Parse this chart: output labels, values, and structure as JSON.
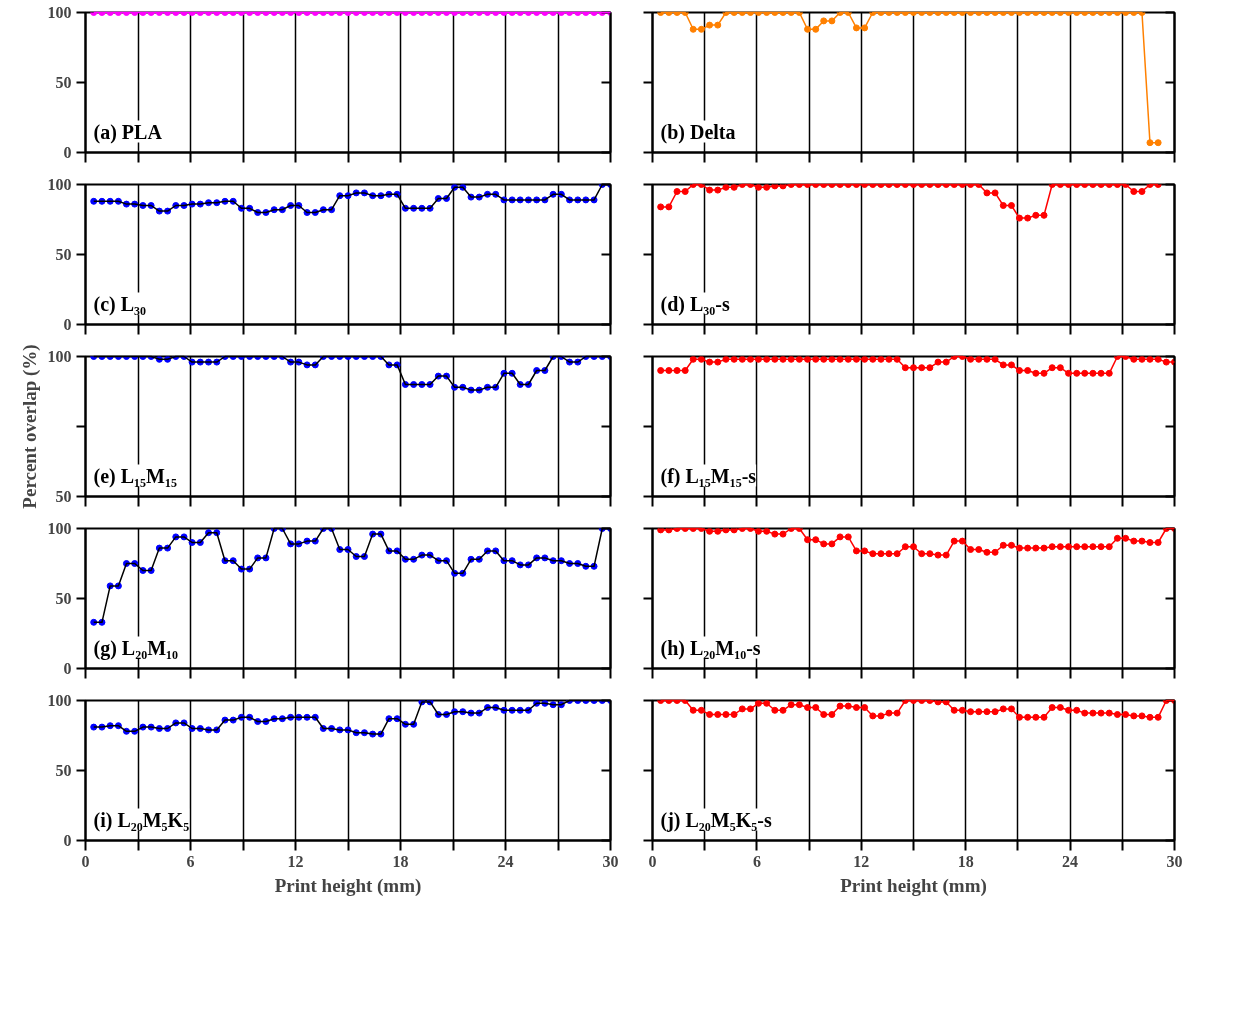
{
  "chart_data": [
    {
      "type": "line",
      "title": "(a) PLA",
      "xlim": [
        0,
        30
      ],
      "ylim": [
        0,
        100
      ],
      "xticks": [
        0,
        {
          "value": 3,
          "label": null
        },
        6,
        {
          "value": 9,
          "label": null
        },
        12,
        {
          "value": 15,
          "label": null
        },
        18,
        {
          "value": 21,
          "label": null
        },
        24,
        {
          "value": 27,
          "label": null
        },
        30
      ],
      "yticks": [
        0,
        50,
        100
      ],
      "grid": "x",
      "tick_labels": "y",
      "marker": "circle",
      "line_style": "solid",
      "x": [
        0.47,
        0.94,
        1.41,
        1.88,
        2.34,
        2.81,
        3.28,
        3.75,
        4.22,
        4.69,
        5.16,
        5.63,
        6.09,
        6.56,
        7.03,
        7.5,
        7.97,
        8.44,
        8.91,
        9.38,
        9.84,
        10.31,
        10.78,
        11.25,
        11.72,
        12.19,
        12.66,
        13.13,
        13.59,
        14.06,
        14.53,
        15,
        15.47,
        15.94,
        16.41,
        16.88,
        17.34,
        17.81,
        18.28,
        18.75,
        19.22,
        19.69,
        20.16,
        20.63,
        21.09,
        21.56,
        22.03,
        22.5,
        22.97,
        23.44,
        23.91,
        24.38,
        24.84,
        25.31,
        25.78,
        26.25,
        26.72,
        27.19,
        27.66,
        28.13,
        28.59,
        29.06,
        29.53,
        30
      ],
      "series": [
        {
          "color": "#ff00ff",
          "values": [
            100,
            100,
            100,
            100,
            100,
            100,
            100,
            100,
            100,
            100,
            100,
            100,
            100,
            100,
            100,
            100,
            100,
            100,
            100,
            100,
            100,
            100,
            100,
            100,
            100,
            100,
            100,
            100,
            100,
            100,
            100,
            100,
            100,
            100,
            100,
            100,
            100,
            100,
            100,
            100,
            100,
            100,
            100,
            100,
            100,
            100,
            100,
            100,
            100,
            100,
            100,
            100,
            100,
            100,
            100,
            100,
            100,
            100,
            100,
            100,
            100,
            100,
            100,
            100
          ]
        }
      ]
    },
    {
      "type": "line",
      "title": "(b) Delta",
      "xlim": [
        0,
        30
      ],
      "ylim": [
        0,
        100
      ],
      "xticks": [
        0,
        {
          "value": 3,
          "label": null
        },
        6,
        {
          "value": 9,
          "label": null
        },
        12,
        {
          "value": 15,
          "label": null
        },
        18,
        {
          "value": 21,
          "label": null
        },
        24,
        {
          "value": 27,
          "label": null
        },
        30
      ],
      "yticks": [
        {
          "value": 0,
          "label": null
        },
        {
          "value": 50,
          "label": null
        },
        {
          "value": 100,
          "label": null
        }
      ],
      "grid": "x",
      "tick_labels": false,
      "marker": "circle",
      "line_style": "solid",
      "x": [
        0.47,
        0.94,
        1.41,
        1.88,
        2.34,
        2.81,
        3.28,
        3.75,
        4.22,
        4.69,
        5.16,
        5.63,
        6.09,
        6.56,
        7.03,
        7.5,
        7.97,
        8.44,
        8.91,
        9.38,
        9.84,
        10.31,
        10.78,
        11.25,
        11.72,
        12.19,
        12.66,
        13.13,
        13.59,
        14.06,
        14.53,
        15,
        15.47,
        15.94,
        16.41,
        16.88,
        17.34,
        17.81,
        18.28,
        18.75,
        19.22,
        19.69,
        20.16,
        20.63,
        21.09,
        21.56,
        22.03,
        22.5,
        22.97,
        23.44,
        23.91,
        24.38,
        24.84,
        25.31,
        25.78,
        26.25,
        26.72,
        27.19,
        27.66,
        28.13,
        28.59,
        29.06
      ],
      "series": [
        {
          "color": "#ff8000",
          "values": [
            100,
            100,
            100,
            100,
            88,
            88,
            91,
            91,
            100,
            100,
            100,
            100,
            100,
            100,
            100,
            100,
            100,
            100,
            88,
            88,
            94,
            94,
            100,
            100,
            89,
            89,
            100,
            100,
            100,
            100,
            100,
            100,
            100,
            100,
            100,
            100,
            100,
            100,
            100,
            100,
            100,
            100,
            100,
            100,
            100,
            100,
            100,
            100,
            100,
            100,
            100,
            100,
            100,
            100,
            100,
            100,
            100,
            100,
            100,
            100,
            7,
            7
          ]
        }
      ]
    },
    {
      "type": "line",
      "title": "(c) L₃₀",
      "xlim": [
        0,
        30
      ],
      "ylim": [
        0,
        100
      ],
      "xticks": [
        0,
        {
          "value": 3,
          "label": null
        },
        6,
        {
          "value": 9,
          "label": null
        },
        12,
        {
          "value": 15,
          "label": null
        },
        18,
        {
          "value": 21,
          "label": null
        },
        24,
        {
          "value": 27,
          "label": null
        },
        30
      ],
      "yticks": [
        0,
        50,
        100
      ],
      "grid": "x",
      "tick_labels": "y",
      "marker": "circle",
      "line_style": "solid",
      "x": [
        0.47,
        0.94,
        1.41,
        1.88,
        2.34,
        2.81,
        3.28,
        3.75,
        4.22,
        4.69,
        5.16,
        5.63,
        6.09,
        6.56,
        7.03,
        7.5,
        7.97,
        8.44,
        8.91,
        9.38,
        9.84,
        10.31,
        10.78,
        11.25,
        11.72,
        12.19,
        12.66,
        13.13,
        13.59,
        14.06,
        14.53,
        15,
        15.47,
        15.94,
        16.41,
        16.88,
        17.34,
        17.81,
        18.28,
        18.75,
        19.22,
        19.69,
        20.16,
        20.63,
        21.09,
        21.56,
        22.03,
        22.5,
        22.97,
        23.44,
        23.91,
        24.38,
        24.84,
        25.31,
        25.78,
        26.25,
        26.72,
        27.19,
        27.66,
        28.13,
        28.59,
        29.06,
        29.53,
        30
      ],
      "series": [
        {
          "type": "line",
          "marker": "none",
          "color": "#000000",
          "values": [
            88,
            88,
            88,
            88,
            86,
            86,
            85,
            85,
            81,
            81,
            85,
            85,
            86,
            86,
            87,
            87,
            88,
            88,
            83,
            83,
            80,
            80,
            82,
            82,
            85,
            85,
            80,
            80,
            82,
            82,
            92,
            92,
            94,
            94,
            92,
            92,
            93,
            93,
            83,
            83,
            83,
            83,
            90,
            90,
            98,
            98,
            91,
            91,
            93,
            93,
            89,
            89,
            89,
            89,
            89,
            89,
            93,
            93,
            89,
            89,
            89,
            89,
            100,
            100
          ]
        },
        {
          "type": "scatter",
          "color": "#0000ff",
          "values": [
            88,
            88,
            88,
            88,
            86,
            86,
            85,
            85,
            81,
            81,
            85,
            85,
            86,
            86,
            87,
            87,
            88,
            88,
            83,
            83,
            80,
            80,
            82,
            82,
            85,
            85,
            80,
            80,
            82,
            82,
            92,
            92,
            94,
            94,
            92,
            92,
            93,
            93,
            83,
            83,
            83,
            83,
            90,
            90,
            98,
            98,
            91,
            91,
            93,
            93,
            89,
            89,
            89,
            89,
            89,
            89,
            93,
            93,
            89,
            89,
            89,
            89,
            100,
            100
          ]
        }
      ]
    },
    {
      "type": "line",
      "title": "(d) L₃₀-s",
      "xlim": [
        0,
        30
      ],
      "ylim": [
        0,
        100
      ],
      "xticks": [
        0,
        {
          "value": 3,
          "label": null
        },
        6,
        {
          "value": 9,
          "label": null
        },
        12,
        {
          "value": 15,
          "label": null
        },
        18,
        {
          "value": 21,
          "label": null
        },
        24,
        {
          "value": 27,
          "label": null
        },
        30
      ],
      "yticks": [
        {
          "value": 0,
          "label": null
        },
        {
          "value": 50,
          "label": null
        },
        {
          "value": 100,
          "label": null
        }
      ],
      "grid": "x",
      "tick_labels": false,
      "marker": "circle",
      "line_style": "solid",
      "x": [
        0.47,
        0.94,
        1.41,
        1.88,
        2.34,
        2.81,
        3.28,
        3.75,
        4.22,
        4.69,
        5.16,
        5.63,
        6.09,
        6.56,
        7.03,
        7.5,
        7.97,
        8.44,
        8.91,
        9.38,
        9.84,
        10.31,
        10.78,
        11.25,
        11.72,
        12.19,
        12.66,
        13.13,
        13.59,
        14.06,
        14.53,
        15,
        15.47,
        15.94,
        16.41,
        16.88,
        17.34,
        17.81,
        18.28,
        18.75,
        19.22,
        19.69,
        20.16,
        20.63,
        21.09,
        21.56,
        22.03,
        22.5,
        22.97,
        23.44,
        23.91,
        24.38,
        24.84,
        25.31,
        25.78,
        26.25,
        26.72,
        27.19,
        27.66,
        28.13,
        28.59,
        29.06
      ],
      "series": [
        {
          "color": "#ff0000",
          "values": [
            84,
            84,
            95,
            95,
            100,
            100,
            96,
            96,
            98,
            98,
            100,
            100,
            98,
            98,
            99,
            99,
            100,
            100,
            100,
            100,
            100,
            100,
            100,
            100,
            100,
            100,
            100,
            100,
            100,
            100,
            100,
            100,
            100,
            100,
            100,
            100,
            100,
            100,
            100,
            100,
            94,
            94,
            85,
            85,
            76,
            76,
            78,
            78,
            100,
            100,
            100,
            100,
            100,
            100,
            100,
            100,
            100,
            100,
            95,
            95,
            100,
            100
          ]
        }
      ]
    },
    {
      "type": "line",
      "title": "(e) L₁₅M₁₅",
      "ylabel": "Percent overlap (%)",
      "xlim": [
        0,
        30
      ],
      "ylim": [
        50,
        100
      ],
      "xticks": [
        0,
        {
          "value": 3,
          "label": null
        },
        6,
        {
          "value": 9,
          "label": null
        },
        12,
        {
          "value": 15,
          "label": null
        },
        18,
        {
          "value": 21,
          "label": null
        },
        24,
        {
          "value": 27,
          "label": null
        },
        30
      ],
      "yticks": [
        50,
        {
          "value": 75,
          "label": null
        },
        100
      ],
      "grid": "x",
      "tick_labels": "y",
      "marker": "circle",
      "line_style": "solid",
      "x": [
        0.47,
        0.94,
        1.41,
        1.88,
        2.34,
        2.81,
        3.28,
        3.75,
        4.22,
        4.69,
        5.16,
        5.63,
        6.09,
        6.56,
        7.03,
        7.5,
        7.97,
        8.44,
        8.91,
        9.38,
        9.84,
        10.31,
        10.78,
        11.25,
        11.72,
        12.19,
        12.66,
        13.13,
        13.59,
        14.06,
        14.53,
        15,
        15.47,
        15.94,
        16.41,
        16.88,
        17.34,
        17.81,
        18.28,
        18.75,
        19.22,
        19.69,
        20.16,
        20.63,
        21.09,
        21.56,
        22.03,
        22.5,
        22.97,
        23.44,
        23.91,
        24.38,
        24.84,
        25.31,
        25.78,
        26.25,
        26.72,
        27.19,
        27.66,
        28.13,
        28.59,
        29.06,
        29.53,
        30
      ],
      "series": [
        {
          "type": "line",
          "marker": "none",
          "color": "#000000",
          "values": [
            100,
            100,
            100,
            100,
            100,
            100,
            100,
            100,
            99,
            99,
            100,
            100,
            98,
            98,
            98,
            98,
            100,
            100,
            100,
            100,
            100,
            100,
            100,
            100,
            98,
            98,
            97,
            97,
            100,
            100,
            100,
            100,
            100,
            100,
            100,
            100,
            97,
            97,
            90,
            90,
            90,
            90,
            93,
            93,
            89,
            89,
            88,
            88,
            89,
            89,
            94,
            94,
            90,
            90,
            95,
            95,
            100,
            100,
            98,
            98,
            100,
            100,
            100,
            100
          ]
        },
        {
          "type": "scatter",
          "color": "#0000ff",
          "values": [
            100,
            100,
            100,
            100,
            100,
            100,
            100,
            100,
            99,
            99,
            100,
            100,
            98,
            98,
            98,
            98,
            100,
            100,
            100,
            100,
            100,
            100,
            100,
            100,
            98,
            98,
            97,
            97,
            100,
            100,
            100,
            100,
            100,
            100,
            100,
            100,
            97,
            97,
            90,
            90,
            90,
            90,
            93,
            93,
            89,
            89,
            88,
            88,
            89,
            89,
            94,
            94,
            90,
            90,
            95,
            95,
            100,
            100,
            98,
            98,
            100,
            100,
            100,
            100
          ]
        }
      ]
    },
    {
      "type": "line",
      "title": "(f) L₁₅M₁₅-s",
      "xlim": [
        0,
        30
      ],
      "ylim": [
        50,
        100
      ],
      "xticks": [
        0,
        {
          "value": 3,
          "label": null
        },
        6,
        {
          "value": 9,
          "label": null
        },
        12,
        {
          "value": 15,
          "label": null
        },
        18,
        {
          "value": 21,
          "label": null
        },
        24,
        {
          "value": 27,
          "label": null
        },
        30
      ],
      "yticks": [
        {
          "value": 50,
          "label": null
        },
        {
          "value": 75,
          "label": null
        },
        {
          "value": 100,
          "label": null
        }
      ],
      "grid": "x",
      "tick_labels": false,
      "marker": "circle",
      "line_style": "solid",
      "x": [
        0.47,
        0.94,
        1.41,
        1.88,
        2.34,
        2.81,
        3.28,
        3.75,
        4.22,
        4.69,
        5.16,
        5.63,
        6.09,
        6.56,
        7.03,
        7.5,
        7.97,
        8.44,
        8.91,
        9.38,
        9.84,
        10.31,
        10.78,
        11.25,
        11.72,
        12.19,
        12.66,
        13.13,
        13.59,
        14.06,
        14.53,
        15,
        15.47,
        15.94,
        16.41,
        16.88,
        17.34,
        17.81,
        18.28,
        18.75,
        19.22,
        19.69,
        20.16,
        20.63,
        21.09,
        21.56,
        22.03,
        22.5,
        22.97,
        23.44,
        23.91,
        24.38,
        24.84,
        25.31,
        25.78,
        26.25,
        26.72,
        27.19,
        27.66,
        28.13,
        28.59,
        29.06,
        29.53,
        30
      ],
      "series": [
        {
          "color": "#ff0000",
          "values": [
            95,
            95,
            95,
            95,
            99,
            99,
            98,
            98,
            99,
            99,
            99,
            99,
            99,
            99,
            99,
            99,
            99,
            99,
            99,
            99,
            99,
            99,
            99,
            99,
            99,
            99,
            99,
            99,
            99,
            99,
            96,
            96,
            96,
            96,
            98,
            98,
            100,
            100,
            99,
            99,
            99,
            99,
            97,
            97,
            95,
            95,
            94,
            94,
            96,
            96,
            94,
            94,
            94,
            94,
            94,
            94,
            100,
            100,
            99,
            99,
            99,
            99,
            98,
            98
          ]
        }
      ]
    },
    {
      "type": "line",
      "title": "(g) L₂₀M₁₀",
      "xlim": [
        0,
        30
      ],
      "ylim": [
        0,
        100
      ],
      "xticks": [
        0,
        {
          "value": 3,
          "label": null
        },
        6,
        {
          "value": 9,
          "label": null
        },
        12,
        {
          "value": 15,
          "label": null
        },
        18,
        {
          "value": 21,
          "label": null
        },
        24,
        {
          "value": 27,
          "label": null
        },
        30
      ],
      "yticks": [
        0,
        50,
        100
      ],
      "grid": "x",
      "tick_labels": "y",
      "marker": "circle",
      "line_style": "solid",
      "x": [
        0.47,
        0.94,
        1.41,
        1.88,
        2.34,
        2.81,
        3.28,
        3.75,
        4.22,
        4.69,
        5.16,
        5.63,
        6.09,
        6.56,
        7.03,
        7.5,
        7.97,
        8.44,
        8.91,
        9.38,
        9.84,
        10.31,
        10.78,
        11.25,
        11.72,
        12.19,
        12.66,
        13.13,
        13.59,
        14.06,
        14.53,
        15,
        15.47,
        15.94,
        16.41,
        16.88,
        17.34,
        17.81,
        18.28,
        18.75,
        19.22,
        19.69,
        20.16,
        20.63,
        21.09,
        21.56,
        22.03,
        22.5,
        22.97,
        23.44,
        23.91,
        24.38,
        24.84,
        25.31,
        25.78,
        26.25,
        26.72,
        27.19,
        27.66,
        28.13,
        28.59,
        29.06,
        29.53,
        30
      ],
      "series": [
        {
          "type": "line",
          "marker": "none",
          "color": "#000000",
          "values": [
            33,
            33,
            59,
            59,
            75,
            75,
            70,
            70,
            86,
            86,
            94,
            94,
            90,
            90,
            97,
            97,
            77,
            77,
            71,
            71,
            79,
            79,
            100,
            100,
            89,
            89,
            91,
            91,
            100,
            100,
            85,
            85,
            80,
            80,
            96,
            96,
            84,
            84,
            78,
            78,
            81,
            81,
            77,
            77,
            68,
            68,
            78,
            78,
            84,
            84,
            77,
            77,
            74,
            74,
            79,
            79,
            77,
            77,
            75,
            75,
            73,
            73,
            100,
            100
          ]
        },
        {
          "type": "scatter",
          "color": "#0000ff",
          "values": [
            33,
            33,
            59,
            59,
            75,
            75,
            70,
            70,
            86,
            86,
            94,
            94,
            90,
            90,
            97,
            97,
            77,
            77,
            71,
            71,
            79,
            79,
            100,
            100,
            89,
            89,
            91,
            91,
            100,
            100,
            85,
            85,
            80,
            80,
            96,
            96,
            84,
            84,
            78,
            78,
            81,
            81,
            77,
            77,
            68,
            68,
            78,
            78,
            84,
            84,
            77,
            77,
            74,
            74,
            79,
            79,
            77,
            77,
            75,
            75,
            73,
            73,
            100,
            100
          ]
        }
      ]
    },
    {
      "type": "line",
      "title": "(h) L₂₀M₁₀-s",
      "xlim": [
        0,
        30
      ],
      "ylim": [
        0,
        100
      ],
      "xticks": [
        0,
        {
          "value": 3,
          "label": null
        },
        6,
        {
          "value": 9,
          "label": null
        },
        12,
        {
          "value": 15,
          "label": null
        },
        18,
        {
          "value": 21,
          "label": null
        },
        24,
        {
          "value": 27,
          "label": null
        },
        30
      ],
      "yticks": [
        {
          "value": 0,
          "label": null
        },
        {
          "value": 50,
          "label": null
        },
        {
          "value": 100,
          "label": null
        }
      ],
      "grid": "x",
      "tick_labels": false,
      "marker": "circle",
      "line_style": "solid",
      "x": [
        0.47,
        0.94,
        1.41,
        1.88,
        2.34,
        2.81,
        3.28,
        3.75,
        4.22,
        4.69,
        5.16,
        5.63,
        6.09,
        6.56,
        7.03,
        7.5,
        7.97,
        8.44,
        8.91,
        9.38,
        9.84,
        10.31,
        10.78,
        11.25,
        11.72,
        12.19,
        12.66,
        13.13,
        13.59,
        14.06,
        14.53,
        15,
        15.47,
        15.94,
        16.41,
        16.88,
        17.34,
        17.81,
        18.28,
        18.75,
        19.22,
        19.69,
        20.16,
        20.63,
        21.09,
        21.56,
        22.03,
        22.5,
        22.97,
        23.44,
        23.91,
        24.38,
        24.84,
        25.31,
        25.78,
        26.25,
        26.72,
        27.19,
        27.66,
        28.13,
        28.59,
        29.06,
        29.53,
        30
      ],
      "series": [
        {
          "color": "#ff0000",
          "values": [
            99,
            99,
            100,
            100,
            100,
            100,
            98,
            98,
            99,
            99,
            100,
            100,
            98,
            98,
            96,
            96,
            100,
            100,
            92,
            92,
            89,
            89,
            94,
            94,
            84,
            84,
            82,
            82,
            82,
            82,
            87,
            87,
            82,
            82,
            81,
            81,
            91,
            91,
            85,
            85,
            83,
            83,
            88,
            88,
            86,
            86,
            86,
            86,
            87,
            87,
            87,
            87,
            87,
            87,
            87,
            87,
            93,
            93,
            91,
            91,
            90,
            90,
            100,
            100
          ]
        }
      ]
    },
    {
      "type": "line",
      "title": "(i) L₂₀M₅K₅",
      "xlabel": "Print height (mm)",
      "xlim": [
        0,
        30
      ],
      "ylim": [
        0,
        100
      ],
      "xticks": [
        0,
        {
          "value": 3,
          "label": null
        },
        6,
        {
          "value": 9,
          "label": null
        },
        12,
        {
          "value": 15,
          "label": null
        },
        18,
        {
          "value": 21,
          "label": null
        },
        24,
        {
          "value": 27,
          "label": null
        },
        30
      ],
      "yticks": [
        0,
        50,
        100
      ],
      "grid": "x",
      "marker": "circle",
      "line_style": "solid",
      "x": [
        0.47,
        0.94,
        1.41,
        1.88,
        2.34,
        2.81,
        3.28,
        3.75,
        4.22,
        4.69,
        5.16,
        5.63,
        6.09,
        6.56,
        7.03,
        7.5,
        7.97,
        8.44,
        8.91,
        9.38,
        9.84,
        10.31,
        10.78,
        11.25,
        11.72,
        12.19,
        12.66,
        13.13,
        13.59,
        14.06,
        14.53,
        15,
        15.47,
        15.94,
        16.41,
        16.88,
        17.34,
        17.81,
        18.28,
        18.75,
        19.22,
        19.69,
        20.16,
        20.63,
        21.09,
        21.56,
        22.03,
        22.5,
        22.97,
        23.44,
        23.91,
        24.38,
        24.84,
        25.31,
        25.78,
        26.25,
        26.72,
        27.19,
        27.66,
        28.13,
        28.59,
        29.06,
        29.53,
        30
      ],
      "series": [
        {
          "type": "line",
          "marker": "none",
          "color": "#000000",
          "values": [
            81,
            81,
            82,
            82,
            78,
            78,
            81,
            81,
            80,
            80,
            84,
            84,
            80,
            80,
            79,
            79,
            86,
            86,
            88,
            88,
            85,
            85,
            87,
            87,
            88,
            88,
            88,
            88,
            80,
            80,
            79,
            79,
            77,
            77,
            76,
            76,
            87,
            87,
            83,
            83,
            99,
            99,
            90,
            90,
            92,
            92,
            91,
            91,
            95,
            95,
            93,
            93,
            93,
            93,
            98,
            98,
            97,
            97,
            100,
            100,
            100,
            100,
            100,
            100
          ]
        },
        {
          "type": "scatter",
          "color": "#0000ff",
          "values": [
            81,
            81,
            82,
            82,
            78,
            78,
            81,
            81,
            80,
            80,
            84,
            84,
            80,
            80,
            79,
            79,
            86,
            86,
            88,
            88,
            85,
            85,
            87,
            87,
            88,
            88,
            88,
            88,
            80,
            80,
            79,
            79,
            77,
            77,
            76,
            76,
            87,
            87,
            83,
            83,
            99,
            99,
            90,
            90,
            92,
            92,
            91,
            91,
            95,
            95,
            93,
            93,
            93,
            93,
            98,
            98,
            97,
            97,
            100,
            100,
            100,
            100,
            100,
            100
          ]
        }
      ]
    },
    {
      "type": "line",
      "title": "(j) L₂₀M₅K₅-s",
      "xlabel": "Print height (mm)",
      "xlim": [
        0,
        30
      ],
      "ylim": [
        0,
        100
      ],
      "xticks": [
        0,
        {
          "value": 3,
          "label": null
        },
        6,
        {
          "value": 9,
          "label": null
        },
        12,
        {
          "value": 15,
          "label": null
        },
        18,
        {
          "value": 21,
          "label": null
        },
        24,
        {
          "value": 27,
          "label": null
        },
        30
      ],
      "yticks": [
        {
          "value": 0,
          "label": null
        },
        {
          "value": 50,
          "label": null
        },
        {
          "value": 100,
          "label": null
        }
      ],
      "grid": "x",
      "tick_labels": "x",
      "marker": "circle",
      "line_style": "solid",
      "x": [
        0.47,
        0.94,
        1.41,
        1.88,
        2.34,
        2.81,
        3.28,
        3.75,
        4.22,
        4.69,
        5.16,
        5.63,
        6.09,
        6.56,
        7.03,
        7.5,
        7.97,
        8.44,
        8.91,
        9.38,
        9.84,
        10.31,
        10.78,
        11.25,
        11.72,
        12.19,
        12.66,
        13.13,
        13.59,
        14.06,
        14.53,
        15,
        15.47,
        15.94,
        16.41,
        16.88,
        17.34,
        17.81,
        18.28,
        18.75,
        19.22,
        19.69,
        20.16,
        20.63,
        21.09,
        21.56,
        22.03,
        22.5,
        22.97,
        23.44,
        23.91,
        24.38,
        24.84,
        25.31,
        25.78,
        26.25,
        26.72,
        27.19,
        27.66,
        28.13,
        28.59,
        29.06,
        29.53,
        30
      ],
      "series": [
        {
          "color": "#ff0000",
          "values": [
            100,
            100,
            100,
            100,
            93,
            93,
            90,
            90,
            90,
            90,
            94,
            94,
            98,
            98,
            93,
            93,
            97,
            97,
            95,
            95,
            90,
            90,
            96,
            96,
            95,
            95,
            89,
            89,
            91,
            91,
            100,
            100,
            100,
            100,
            99,
            99,
            93,
            93,
            92,
            92,
            92,
            92,
            94,
            94,
            88,
            88,
            88,
            88,
            95,
            95,
            93,
            93,
            91,
            91,
            91,
            91,
            90,
            90,
            89,
            89,
            88,
            88,
            100,
            100
          ]
        }
      ]
    }
  ]
}
